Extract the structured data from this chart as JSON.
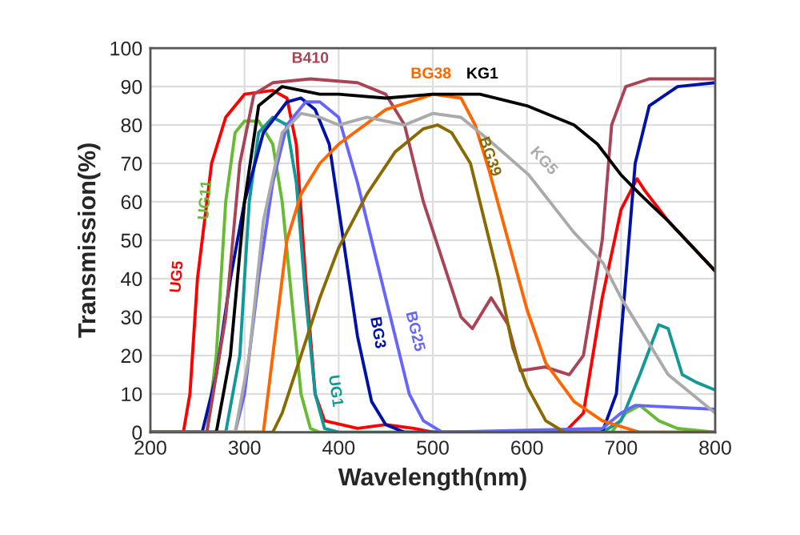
{
  "chart_data": {
    "type": "line",
    "xlabel": "Wavelength(nm)",
    "ylabel": "Transmission(%)",
    "xlim": [
      200,
      800
    ],
    "ylim": [
      0,
      100
    ],
    "xticks": [
      200,
      300,
      400,
      500,
      600,
      700,
      800
    ],
    "yticks": [
      0,
      10,
      20,
      30,
      40,
      50,
      60,
      70,
      80,
      90,
      100
    ],
    "grid": true,
    "marker": "none",
    "line_style": "solid",
    "series": [
      {
        "color": "#ff0000",
        "x": [
          200,
          235,
          242,
          250,
          265,
          280,
          300,
          330,
          345,
          355,
          365,
          375,
          385,
          420,
          450,
          480,
          500,
          640,
          660,
          680,
          700,
          717,
          725,
          750,
          800
        ],
        "values": [
          0,
          0,
          10,
          40,
          70,
          82,
          88,
          89,
          87,
          75,
          40,
          10,
          3,
          1,
          2,
          1,
          0,
          0,
          5,
          35,
          58,
          66,
          63,
          55,
          42
        ]
      },
      {
        "color": "#66bb33",
        "x": [
          200,
          260,
          270,
          280,
          290,
          300,
          315,
          330,
          340,
          350,
          360,
          370,
          380,
          690,
          705,
          720,
          740,
          760,
          800
        ],
        "values": [
          0,
          0,
          20,
          60,
          78,
          81,
          81,
          75,
          60,
          35,
          10,
          1,
          0,
          0,
          5,
          7,
          3,
          1,
          0
        ]
      },
      {
        "color": "#119999",
        "x": [
          200,
          280,
          295,
          305,
          315,
          330,
          345,
          355,
          365,
          375,
          385,
          400,
          680,
          700,
          720,
          740,
          750,
          765,
          780,
          800
        ],
        "values": [
          0,
          0,
          20,
          60,
          78,
          82,
          80,
          65,
          35,
          10,
          1,
          0,
          0,
          3,
          15,
          28,
          27,
          15,
          13,
          11
        ]
      },
      {
        "color": "#0011aa",
        "x": [
          200,
          255,
          270,
          285,
          300,
          320,
          345,
          360,
          375,
          390,
          405,
          420,
          435,
          450,
          470,
          680,
          695,
          705,
          715,
          730,
          760,
          800
        ],
        "values": [
          0,
          0,
          15,
          40,
          60,
          78,
          86,
          87,
          84,
          75,
          50,
          25,
          8,
          2,
          0,
          0,
          10,
          40,
          70,
          85,
          90,
          91
        ]
      },
      {
        "color": "#6666ff",
        "x": [
          200,
          290,
          300,
          315,
          330,
          345,
          365,
          380,
          400,
          420,
          440,
          460,
          475,
          490,
          510,
          680,
          700,
          715,
          800
        ],
        "values": [
          0,
          0,
          10,
          40,
          65,
          80,
          86,
          86,
          82,
          65,
          45,
          25,
          10,
          3,
          0,
          1,
          5,
          7,
          6
        ]
      },
      {
        "color": "#a84455",
        "x": [
          200,
          260,
          280,
          295,
          310,
          330,
          370,
          420,
          450,
          470,
          490,
          510,
          530,
          542,
          562,
          580,
          593,
          619,
          645,
          660,
          680,
          690,
          705,
          730,
          800
        ],
        "values": [
          0,
          0,
          30,
          70,
          88,
          91,
          92,
          91,
          88,
          80,
          60,
          45,
          30,
          27,
          35,
          28,
          16,
          17,
          15,
          20,
          50,
          80,
          90,
          92,
          92
        ]
      },
      {
        "color": "#ff6600",
        "x": [
          200,
          320,
          330,
          345,
          360,
          380,
          400,
          450,
          500,
          530,
          545,
          560,
          580,
          600,
          620,
          650,
          680,
          720,
          800
        ],
        "values": [
          0,
          0,
          20,
          50,
          62,
          70,
          75,
          84,
          88,
          87,
          80,
          68,
          50,
          32,
          18,
          8,
          3,
          0,
          0
        ]
      },
      {
        "color": "#8a6a00",
        "x": [
          200,
          330,
          340,
          360,
          380,
          400,
          430,
          460,
          490,
          505,
          520,
          540,
          556,
          570,
          585,
          600,
          620,
          640,
          800
        ],
        "values": [
          0,
          0,
          5,
          20,
          35,
          48,
          62,
          73,
          79,
          80,
          78,
          70,
          54,
          40,
          22,
          12,
          3,
          0,
          0
        ]
      },
      {
        "color": "#000000",
        "x": [
          200,
          270,
          285,
          300,
          315,
          340,
          380,
          400,
          450,
          500,
          550,
          600,
          650,
          675,
          700,
          720,
          750,
          800
        ],
        "values": [
          0,
          0,
          20,
          60,
          85,
          90,
          88,
          88,
          87,
          88,
          88,
          85,
          80,
          75,
          67,
          62,
          55,
          42
        ]
      },
      {
        "color": "#aaaaaa",
        "x": [
          200,
          290,
          305,
          320,
          340,
          360,
          380,
          400,
          430,
          470,
          500,
          530,
          560,
          602,
          650,
          681,
          700,
          750,
          800
        ],
        "values": [
          0,
          0,
          20,
          55,
          78,
          83,
          82,
          80,
          82,
          80,
          83,
          82,
          76,
          67,
          52,
          44,
          35,
          15,
          5
        ]
      }
    ],
    "annotations": [
      {
        "text": "UG5",
        "x": 250,
        "y": 40
      },
      {
        "text": "UG11",
        "x": 280,
        "y": 60
      },
      {
        "text": "UG1",
        "x": 375,
        "y": 10
      },
      {
        "text": "BG3",
        "x": 420,
        "y": 25
      },
      {
        "text": "BG25",
        "x": 460,
        "y": 25
      },
      {
        "text": "B410",
        "x": 370,
        "y": 92
      },
      {
        "text": "BG38",
        "x": 500,
        "y": 88
      },
      {
        "text": "BG39",
        "x": 540,
        "y": 70
      },
      {
        "text": "KG1",
        "x": 550,
        "y": 88
      },
      {
        "text": "KG5",
        "x": 602,
        "y": 67
      }
    ]
  }
}
